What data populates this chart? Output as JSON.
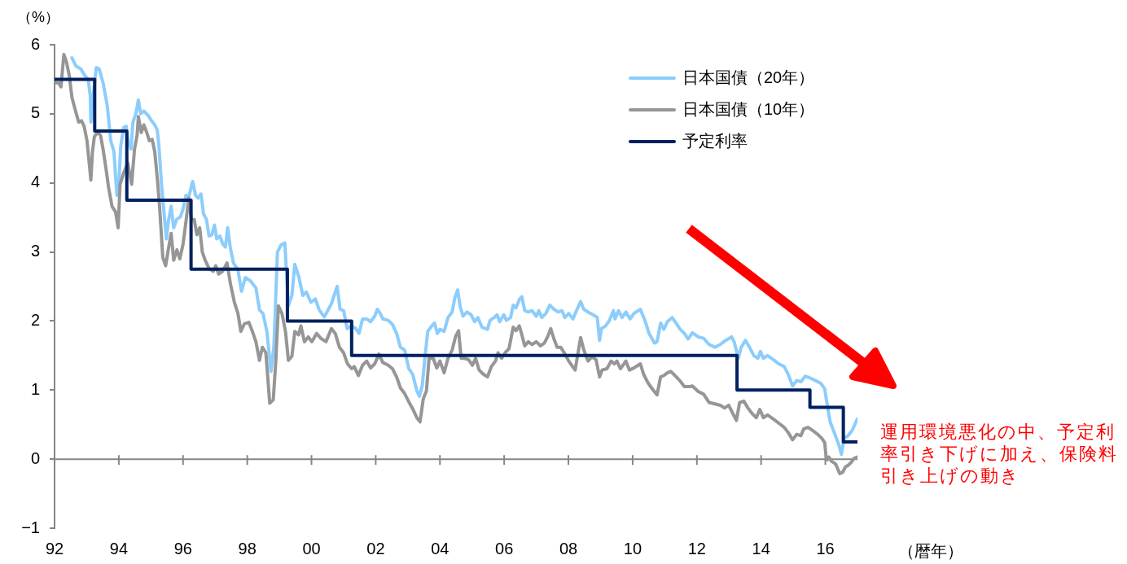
{
  "chart_data": {
    "type": "line",
    "ylabel": "（%）",
    "xlabel": "（暦年）",
    "xlim": [
      1992,
      2017
    ],
    "xticks": [
      {
        "value": 1992,
        "label": "92"
      },
      {
        "value": 1994,
        "label": "94"
      },
      {
        "value": 1996,
        "label": "96"
      },
      {
        "value": 1998,
        "label": "98"
      },
      {
        "value": 2000,
        "label": "00"
      },
      {
        "value": 2002,
        "label": "02"
      },
      {
        "value": 2004,
        "label": "04"
      },
      {
        "value": 2006,
        "label": "06"
      },
      {
        "value": 2008,
        "label": "08"
      },
      {
        "value": 2010,
        "label": "10"
      },
      {
        "value": 2012,
        "label": "12"
      },
      {
        "value": 2014,
        "label": "14"
      },
      {
        "value": 2016,
        "label": "16"
      }
    ],
    "ylim": [
      -1,
      6
    ],
    "yticks": [
      {
        "value": -1,
        "label": "−1"
      },
      0,
      1,
      2,
      3,
      4,
      5,
      6
    ],
    "legend": "top right",
    "annotations": [
      "運用環境悪化の中、予定利率引き下げに加え、保険料引き上げの動き"
    ],
    "series": [
      {
        "name": "日本国債（20年）",
        "color": "#8ccdfc",
        "x": [
          1992.54,
          1992.67,
          1992.82,
          1992.92,
          1993.05,
          1993.11,
          1993.13,
          1993.19,
          1993.3,
          1993.39,
          1993.51,
          1993.64,
          1993.75,
          1993.85,
          1993.94,
          1994.0,
          1994.06,
          1994.15,
          1994.23,
          1994.29,
          1994.38,
          1994.44,
          1994.53,
          1994.61,
          1994.68,
          1994.78,
          1994.91,
          1995.02,
          1995.12,
          1995.2,
          1995.25,
          1995.33,
          1995.42,
          1995.48,
          1995.54,
          1995.63,
          1995.71,
          1995.8,
          1995.92,
          1996.0,
          1996.09,
          1996.18,
          1996.3,
          1996.39,
          1996.47,
          1996.56,
          1996.64,
          1996.73,
          1996.81,
          1996.9,
          1996.98,
          1997.05,
          1997.15,
          1997.24,
          1997.32,
          1997.39,
          1997.47,
          1997.57,
          1997.71,
          1997.82,
          1997.94,
          1998.1,
          1998.27,
          1998.38,
          1998.49,
          1998.61,
          1998.74,
          1998.83,
          1998.94,
          1999.05,
          1999.17,
          1999.28,
          1999.39,
          1999.48,
          1999.61,
          1999.73,
          1999.84,
          1999.98,
          2000.12,
          2000.24,
          2000.4,
          2000.62,
          2000.8,
          2000.89,
          2001.0,
          2001.11,
          2001.25,
          2001.38,
          2001.48,
          2001.59,
          2001.72,
          2001.84,
          2001.97,
          2002.05,
          2002.14,
          2002.22,
          2002.39,
          2002.52,
          2002.65,
          2002.77,
          2002.9,
          2003.03,
          2003.15,
          2003.28,
          2003.36,
          2003.45,
          2003.53,
          2003.62,
          2003.75,
          2003.83,
          2003.92,
          2004.0,
          2004.13,
          2004.25,
          2004.38,
          2004.46,
          2004.55,
          2004.63,
          2004.72,
          2004.84,
          2004.97,
          2005.08,
          2005.18,
          2005.31,
          2005.48,
          2005.56,
          2005.69,
          2005.78,
          2005.86,
          2005.99,
          2006.07,
          2006.2,
          2006.28,
          2006.37,
          2006.47,
          2006.55,
          2006.64,
          2006.75,
          2006.87,
          2007.0,
          2007.08,
          2007.17,
          2007.3,
          2007.42,
          2007.55,
          2007.68,
          2007.8,
          2007.89,
          2008.01,
          2008.14,
          2008.27,
          2008.38,
          2008.48,
          2008.61,
          2008.77,
          2008.9,
          2008.97,
          2009.03,
          2009.16,
          2009.28,
          2009.4,
          2009.45,
          2009.56,
          2009.67,
          2009.79,
          2009.92,
          2010.04,
          2010.24,
          2010.38,
          2010.51,
          2010.68,
          2010.76,
          2010.87,
          2010.97,
          2011.08,
          2011.23,
          2011.35,
          2011.48,
          2011.61,
          2011.73,
          2011.86,
          2012.04,
          2012.21,
          2012.38,
          2012.56,
          2012.73,
          2012.9,
          2013.08,
          2013.16,
          2013.29,
          2013.38,
          2013.51,
          2013.64,
          2013.77,
          2013.9,
          2013.98,
          2014.07,
          2014.2,
          2014.38,
          2014.55,
          2014.72,
          2014.85,
          2014.98,
          2015.11,
          2015.24,
          2015.37,
          2015.5,
          2015.68,
          2015.85,
          2015.98,
          2016.06,
          2016.15,
          2016.28,
          2016.41,
          2016.5,
          2016.58,
          2016.71,
          2016.84,
          2016.99
        ],
        "values": [
          5.81,
          5.69,
          5.65,
          5.57,
          5.49,
          5.27,
          4.88,
          5.2,
          5.67,
          5.65,
          5.45,
          5.12,
          4.61,
          4.45,
          3.82,
          3.98,
          4.53,
          4.8,
          4.82,
          4.61,
          4.49,
          4.88,
          5.0,
          5.2,
          5.0,
          5.04,
          4.98,
          4.9,
          4.84,
          4.76,
          4.53,
          3.98,
          3.51,
          3.19,
          3.43,
          3.66,
          3.35,
          3.47,
          3.51,
          3.62,
          3.82,
          3.8,
          4.02,
          3.82,
          3.78,
          3.84,
          3.55,
          3.47,
          3.23,
          3.25,
          3.39,
          3.19,
          3.23,
          3.11,
          3.07,
          3.35,
          3.07,
          2.84,
          2.74,
          2.43,
          2.63,
          2.58,
          2.48,
          2.16,
          2.11,
          1.85,
          1.27,
          1.64,
          3.0,
          3.1,
          3.13,
          2.22,
          2.37,
          2.82,
          2.63,
          2.37,
          2.42,
          2.27,
          2.32,
          2.16,
          2.06,
          2.25,
          2.5,
          2.17,
          2.15,
          1.89,
          1.93,
          1.89,
          1.82,
          2.03,
          2.03,
          1.99,
          2.07,
          2.17,
          2.11,
          2.03,
          2.01,
          1.95,
          1.82,
          1.62,
          1.58,
          1.31,
          1.23,
          0.99,
          0.91,
          1.07,
          1.46,
          1.85,
          1.93,
          1.97,
          1.82,
          1.88,
          1.85,
          2.05,
          2.13,
          2.33,
          2.45,
          2.21,
          2.07,
          2.13,
          2.09,
          1.99,
          2.05,
          1.91,
          1.88,
          2.01,
          2.05,
          2.09,
          1.99,
          2.09,
          2.01,
          2.05,
          2.23,
          2.19,
          2.31,
          2.35,
          2.15,
          2.13,
          2.15,
          2.07,
          2.15,
          2.05,
          2.11,
          2.23,
          2.17,
          2.13,
          2.15,
          2.05,
          2.11,
          2.03,
          2.17,
          2.28,
          2.17,
          2.13,
          2.09,
          2.05,
          1.72,
          1.89,
          1.93,
          2.01,
          2.15,
          2.03,
          2.15,
          2.05,
          2.13,
          2.03,
          2.11,
          2.17,
          2.01,
          1.82,
          1.68,
          1.7,
          1.97,
          1.88,
          1.99,
          2.05,
          1.97,
          1.88,
          1.82,
          1.74,
          1.83,
          1.77,
          1.75,
          1.66,
          1.62,
          1.66,
          1.72,
          1.77,
          1.7,
          1.46,
          1.62,
          1.72,
          1.62,
          1.5,
          1.46,
          1.56,
          1.46,
          1.5,
          1.44,
          1.38,
          1.34,
          1.22,
          1.06,
          1.14,
          1.12,
          1.2,
          1.18,
          1.14,
          1.1,
          1.02,
          0.78,
          0.54,
          0.38,
          0.22,
          0.07,
          0.3,
          0.34,
          0.42,
          0.58
        ]
      },
      {
        "name": "日本国債（10年）",
        "color": "#969696",
        "x": [
          1992.0,
          1992.12,
          1992.2,
          1992.29,
          1992.37,
          1992.46,
          1992.54,
          1992.63,
          1992.75,
          1992.84,
          1992.92,
          1993.01,
          1993.07,
          1993.13,
          1993.18,
          1993.24,
          1993.34,
          1993.43,
          1993.51,
          1993.6,
          1993.68,
          1993.79,
          1993.9,
          1993.98,
          1994.04,
          1994.15,
          1994.28,
          1994.4,
          1994.49,
          1994.57,
          1994.61,
          1994.7,
          1994.78,
          1994.87,
          1994.95,
          1995.04,
          1995.12,
          1995.2,
          1995.27,
          1995.37,
          1995.46,
          1995.54,
          1995.63,
          1995.71,
          1995.81,
          1995.9,
          1996.0,
          1996.09,
          1996.18,
          1996.26,
          1996.35,
          1996.43,
          1996.52,
          1996.6,
          1996.69,
          1996.81,
          1996.94,
          1997.02,
          1997.11,
          1997.23,
          1997.37,
          1997.48,
          1997.6,
          1997.71,
          1997.8,
          1997.91,
          1998.05,
          1998.16,
          1998.27,
          1998.38,
          1998.47,
          1998.58,
          1998.7,
          1998.81,
          1998.89,
          1998.97,
          1999.08,
          1999.19,
          1999.28,
          1999.39,
          1999.48,
          1999.6,
          1999.67,
          1999.78,
          1999.9,
          2000.01,
          2000.16,
          2000.29,
          2000.45,
          2000.62,
          2000.74,
          2000.87,
          2001.0,
          2001.12,
          2001.25,
          2001.33,
          2001.46,
          2001.59,
          2001.72,
          2001.84,
          2001.97,
          2002.1,
          2002.22,
          2002.39,
          2002.52,
          2002.65,
          2002.77,
          2002.9,
          2003.03,
          2003.15,
          2003.28,
          2003.38,
          2003.48,
          2003.58,
          2003.66,
          2003.79,
          2003.9,
          2004.0,
          2004.13,
          2004.25,
          2004.38,
          2004.49,
          2004.58,
          2004.66,
          2004.76,
          2004.89,
          2005.01,
          2005.11,
          2005.22,
          2005.35,
          2005.48,
          2005.6,
          2005.73,
          2005.81,
          2005.92,
          2006.03,
          2006.15,
          2006.28,
          2006.37,
          2006.47,
          2006.55,
          2006.64,
          2006.75,
          2006.87,
          2007.0,
          2007.13,
          2007.25,
          2007.36,
          2007.45,
          2007.55,
          2007.65,
          2007.76,
          2007.87,
          2008.01,
          2008.1,
          2008.21,
          2008.3,
          2008.38,
          2008.48,
          2008.61,
          2008.73,
          2008.86,
          2008.97,
          2009.05,
          2009.2,
          2009.33,
          2009.43,
          2009.51,
          2009.62,
          2009.79,
          2009.9,
          2010.04,
          2010.24,
          2010.34,
          2010.47,
          2010.59,
          2010.76,
          2010.87,
          2010.97,
          2011.08,
          2011.19,
          2011.36,
          2011.48,
          2011.61,
          2011.78,
          2011.86,
          2012.04,
          2012.21,
          2012.38,
          2012.56,
          2012.73,
          2012.86,
          2012.99,
          2013.12,
          2013.23,
          2013.33,
          2013.46,
          2013.59,
          2013.72,
          2013.85,
          2013.96,
          2014.07,
          2014.2,
          2014.38,
          2014.55,
          2014.72,
          2014.85,
          2014.98,
          2015.11,
          2015.24,
          2015.33,
          2015.46,
          2015.59,
          2015.76,
          2015.89,
          2015.98,
          2016.02,
          2016.06,
          2016.11,
          2016.19,
          2016.32,
          2016.45,
          2016.54,
          2016.63,
          2016.71,
          2016.8,
          2016.89,
          2016.99
        ],
        "values": [
          5.45,
          5.45,
          5.39,
          5.86,
          5.75,
          5.55,
          5.24,
          5.08,
          4.88,
          4.9,
          4.82,
          4.61,
          4.33,
          4.04,
          4.45,
          4.67,
          4.73,
          4.69,
          4.49,
          4.21,
          3.94,
          3.66,
          3.58,
          3.35,
          3.98,
          4.14,
          4.29,
          3.98,
          4.49,
          4.69,
          4.96,
          4.73,
          4.84,
          4.73,
          4.61,
          4.63,
          4.45,
          4.06,
          3.66,
          2.92,
          2.8,
          3.03,
          3.27,
          2.88,
          3.03,
          2.9,
          3.11,
          3.43,
          3.78,
          3.47,
          3.47,
          3.25,
          3.35,
          3.0,
          2.88,
          2.76,
          2.72,
          2.8,
          2.68,
          2.72,
          2.84,
          2.53,
          2.27,
          2.11,
          1.85,
          1.96,
          1.98,
          1.85,
          1.7,
          1.43,
          1.62,
          1.54,
          0.81,
          0.86,
          1.43,
          2.22,
          2.11,
          1.85,
          1.43,
          1.49,
          1.85,
          1.8,
          1.93,
          1.7,
          1.77,
          1.7,
          1.82,
          1.75,
          1.7,
          1.89,
          1.82,
          1.62,
          1.54,
          1.38,
          1.31,
          1.34,
          1.21,
          1.36,
          1.42,
          1.32,
          1.38,
          1.52,
          1.4,
          1.36,
          1.31,
          1.19,
          1.03,
          0.95,
          0.83,
          0.73,
          0.6,
          0.54,
          0.87,
          0.99,
          1.46,
          1.46,
          1.32,
          1.42,
          1.25,
          1.46,
          1.58,
          1.78,
          1.86,
          1.46,
          1.46,
          1.44,
          1.36,
          1.46,
          1.29,
          1.23,
          1.19,
          1.34,
          1.42,
          1.54,
          1.46,
          1.54,
          1.6,
          1.91,
          1.86,
          1.93,
          1.8,
          1.64,
          1.7,
          1.66,
          1.7,
          1.64,
          1.68,
          1.78,
          1.89,
          1.74,
          1.62,
          1.62,
          1.54,
          1.42,
          1.36,
          1.29,
          1.54,
          1.76,
          1.58,
          1.42,
          1.48,
          1.44,
          1.19,
          1.29,
          1.31,
          1.42,
          1.38,
          1.42,
          1.31,
          1.42,
          1.29,
          1.32,
          1.38,
          1.23,
          1.11,
          1.03,
          0.93,
          1.19,
          1.21,
          1.25,
          1.27,
          1.19,
          1.13,
          1.05,
          1.05,
          1.06,
          0.98,
          0.94,
          0.82,
          0.8,
          0.78,
          0.74,
          0.78,
          0.66,
          0.56,
          0.82,
          0.84,
          0.74,
          0.66,
          0.6,
          0.72,
          0.6,
          0.64,
          0.58,
          0.52,
          0.46,
          0.38,
          0.28,
          0.36,
          0.34,
          0.44,
          0.46,
          0.42,
          0.36,
          0.3,
          0.24,
          0.05,
          -0.01,
          0.03,
          -0.03,
          -0.07,
          -0.21,
          -0.19,
          -0.11,
          -0.09,
          -0.05,
          0.01,
          0.03
        ]
      },
      {
        "name": "予定利率",
        "type": "step",
        "color": "#002060",
        "x": [
          1992,
          1993.25,
          1994.25,
          1996.25,
          1999.25,
          2001.25,
          2013.25,
          2015.52,
          2016.56,
          2016.99
        ],
        "values": [
          5.5,
          4.75,
          3.75,
          2.75,
          2.0,
          1.5,
          1.0,
          0.75,
          0.25,
          0.25
        ]
      }
    ]
  }
}
